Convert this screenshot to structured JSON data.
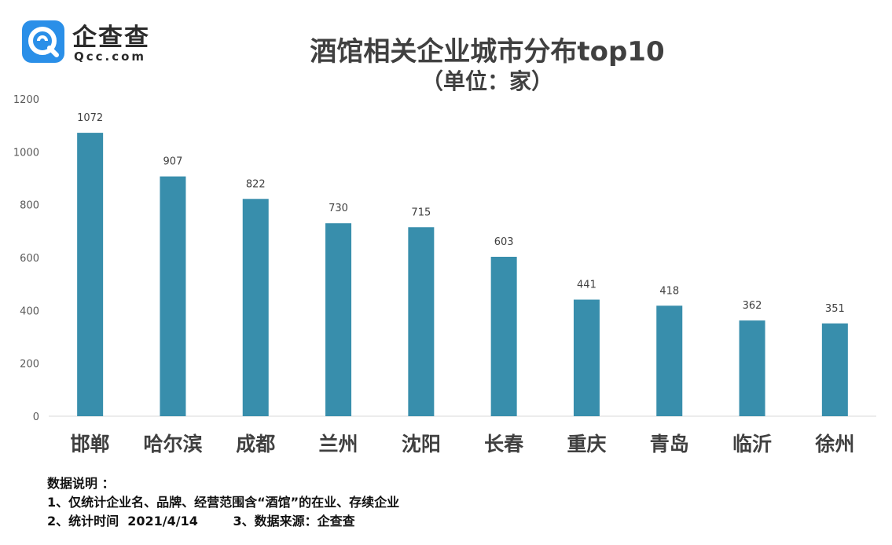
{
  "logo": {
    "name": "企查查",
    "domain": "Qcc.com"
  },
  "chart_data": {
    "type": "bar",
    "title": "酒馆相关企业城市分布top10",
    "subtitle": "（单位：家）",
    "categories": [
      "邯郸",
      "哈尔滨",
      "成都",
      "兰州",
      "沈阳",
      "长春",
      "重庆",
      "青岛",
      "临沂",
      "徐州"
    ],
    "values": [
      1072,
      907,
      822,
      730,
      715,
      603,
      441,
      418,
      362,
      351
    ],
    "ylim": [
      0,
      1200
    ],
    "yticks": [
      0,
      200,
      400,
      600,
      800,
      1000,
      1200
    ],
    "grid": false,
    "legend": "none",
    "bar_color": "#388eac"
  },
  "notes": {
    "heading": "数据说明 ：",
    "line1": "1、仅统计企业名、品牌、经营范围含“酒馆”的在业、存续企业",
    "line2": "2、统计时间  2021/4/14        3、数据来源：企查查"
  }
}
